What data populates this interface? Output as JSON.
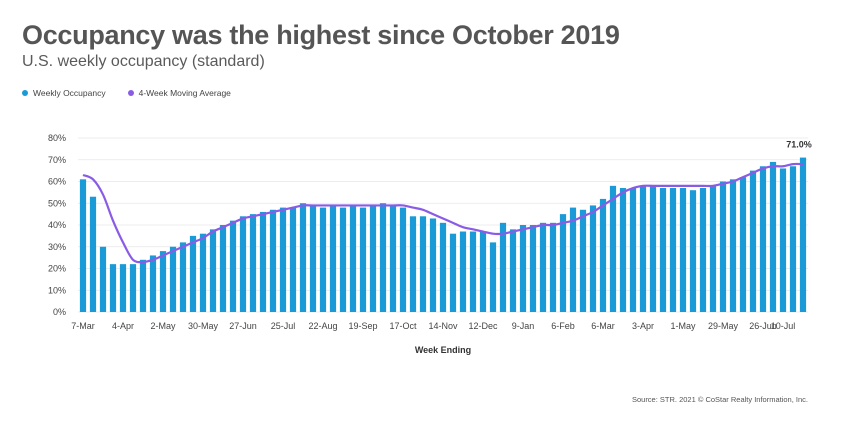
{
  "title": "Occupancy was the highest since October 2019",
  "subtitle": "U.S. weekly occupancy (standard)",
  "source": "Source: STR. 2021 © CoStar Realty Information, Inc.",
  "colors": {
    "bar": "#1a9ad6",
    "line": "#8a5ce6",
    "title": "#555555"
  },
  "chart_data": {
    "type": "bar",
    "xlabel": "Week Ending",
    "ylabel": "",
    "ylim": [
      0,
      80
    ],
    "yticks": [
      "0%",
      "10%",
      "20%",
      "30%",
      "40%",
      "50%",
      "60%",
      "70%",
      "80%"
    ],
    "xticks": [
      {
        "label": "7-Mar",
        "index": 0
      },
      {
        "label": "4-Apr",
        "index": 4
      },
      {
        "label": "2-May",
        "index": 8
      },
      {
        "label": "30-May",
        "index": 12
      },
      {
        "label": "27-Jun",
        "index": 16
      },
      {
        "label": "25-Jul",
        "index": 20
      },
      {
        "label": "22-Aug",
        "index": 24
      },
      {
        "label": "19-Sep",
        "index": 28
      },
      {
        "label": "17-Oct",
        "index": 32
      },
      {
        "label": "14-Nov",
        "index": 36
      },
      {
        "label": "12-Dec",
        "index": 40
      },
      {
        "label": "9-Jan",
        "index": 44
      },
      {
        "label": "6-Feb",
        "index": 48
      },
      {
        "label": "6-Mar",
        "index": 52
      },
      {
        "label": "3-Apr",
        "index": 56
      },
      {
        "label": "1-May",
        "index": 60
      },
      {
        "label": "29-May",
        "index": 64
      },
      {
        "label": "26-Jun",
        "index": 68
      },
      {
        "label": "10-Jul",
        "index": 70
      }
    ],
    "series": [
      {
        "name": "Weekly Occupancy",
        "type": "bar",
        "values": [
          61,
          53,
          30,
          22,
          22,
          22,
          24,
          26,
          28,
          30,
          32,
          35,
          36,
          38,
          40,
          42,
          44,
          45,
          46,
          47,
          48,
          48,
          50,
          49,
          48,
          49,
          48,
          49,
          48,
          49,
          50,
          49,
          48,
          44,
          44,
          43,
          41,
          36,
          37,
          37,
          37,
          32,
          41,
          38,
          40,
          40,
          41,
          41,
          45,
          48,
          47,
          49,
          52,
          58,
          57,
          57,
          58,
          58,
          57,
          57,
          57,
          56,
          57,
          58,
          60,
          61,
          62,
          65,
          67,
          69,
          66,
          67,
          71
        ],
        "data_labels": [
          {
            "index": 72,
            "text": "71.0%"
          }
        ]
      },
      {
        "name": "4-Week Moving Average",
        "type": "line",
        "values": [
          63,
          61,
          54,
          42,
          32,
          24,
          23,
          24,
          26,
          28,
          30,
          32,
          34,
          37,
          39,
          41,
          43,
          44,
          45,
          46,
          47,
          48,
          49,
          49,
          49,
          49,
          49,
          49,
          49,
          49,
          49,
          49,
          49,
          48,
          47,
          45,
          43,
          41,
          39,
          38,
          37,
          36,
          36,
          37,
          38,
          39,
          40,
          40,
          41,
          42,
          44,
          46,
          49,
          52,
          55,
          57,
          58,
          58,
          58,
          58,
          58,
          58,
          58,
          58,
          59,
          60,
          62,
          64,
          66,
          67,
          67,
          68,
          68
        ]
      }
    ]
  }
}
